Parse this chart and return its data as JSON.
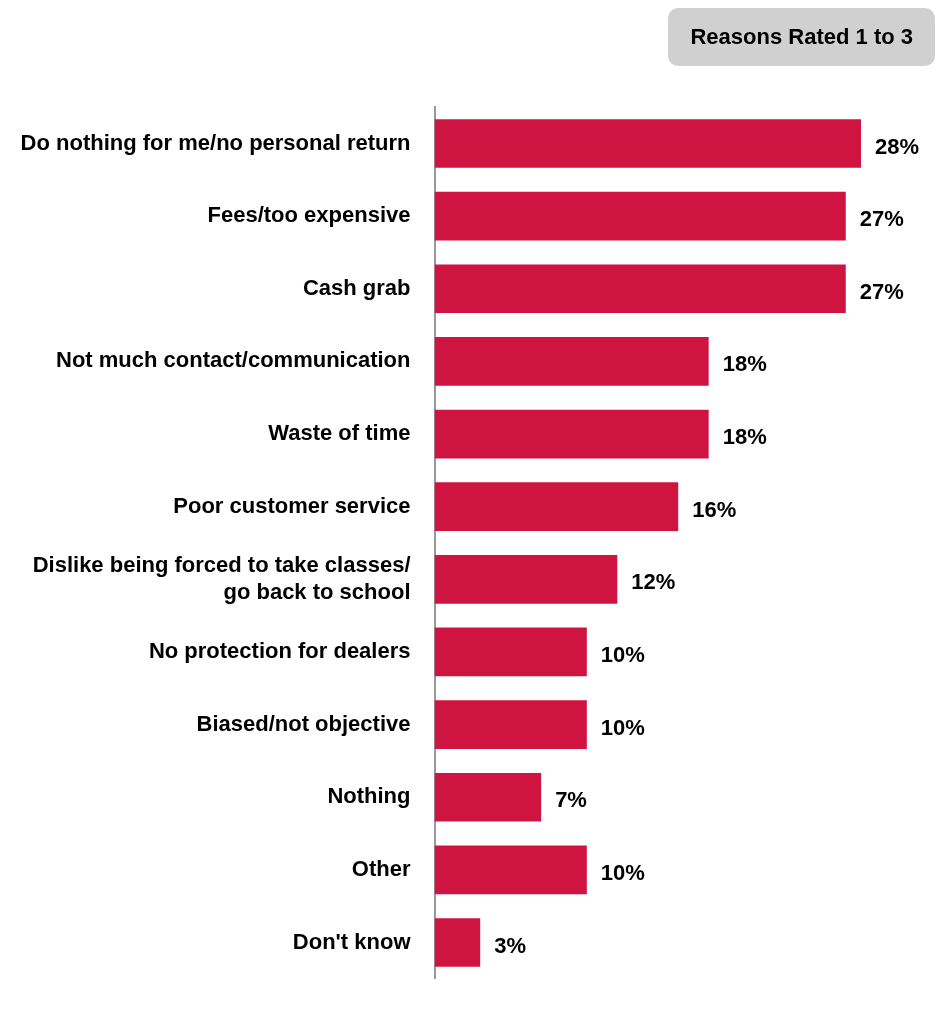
{
  "chart_data": {
    "type": "bar",
    "orientation": "horizontal",
    "title": "Reasons Rated 1 to 3",
    "categories": [
      "Do nothing for me/no personal return",
      "Fees/too expensive",
      "Cash grab",
      "Not much contact/communication",
      "Waste of time",
      "Poor customer service",
      "Dislike being forced to take classes/ go back to school",
      "No protection for dealers",
      "Biased/not objective",
      "Nothing",
      "Other",
      "Don't know"
    ],
    "values": [
      28,
      27,
      27,
      18,
      18,
      16,
      12,
      10,
      10,
      7,
      10,
      3
    ],
    "value_labels": [
      "28%",
      "27%",
      "27%",
      "18%",
      "18%",
      "16%",
      "12%",
      "10%",
      "10%",
      "7%",
      "10%",
      "3%"
    ],
    "color": "#d01442"
  }
}
